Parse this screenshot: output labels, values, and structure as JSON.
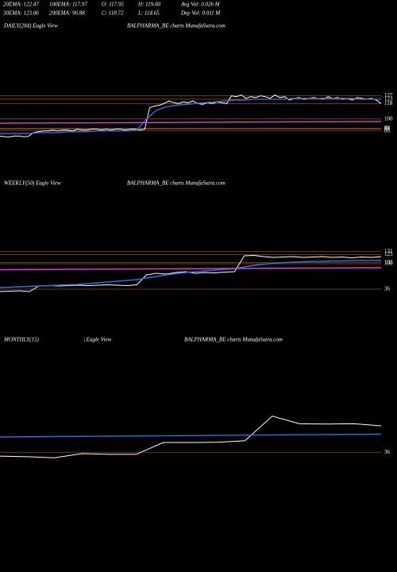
{
  "header": {
    "row1": [
      "20EMA: 122.47",
      "100EMA: 117.97",
      "O: 117.95",
      "H: 119.00",
      "Avg Vol: 0.026 M"
    ],
    "row2": [
      "30EMA: 123.06",
      "200EMA: 96.88",
      "C: 118.72",
      "L: 114.65",
      "Day Vol: 0.011 M"
    ]
  },
  "chart_data": [
    {
      "type": "line",
      "title_parts": [
        "DAILY(284) Eagle View",
        "BALPHARMA_BE charts MunafaSutra.com"
      ],
      "ylim": [
        70,
        135
      ],
      "yticks": [
        127,
        123,
        118,
        100,
        89,
        88,
        86
      ],
      "series": [
        {
          "color": "#ffffff",
          "values": [
            80,
            79,
            79,
            80,
            80,
            79,
            80,
            84,
            85,
            86,
            86,
            87,
            86,
            87,
            87,
            86,
            88,
            87,
            87,
            88,
            88,
            87,
            88,
            87,
            88,
            88,
            87,
            88,
            88,
            87,
            88,
            113,
            115,
            116,
            118,
            121,
            119,
            118,
            120,
            119,
            121,
            118,
            117,
            119,
            118,
            120,
            119,
            118,
            127,
            126,
            128,
            124,
            126,
            125,
            127,
            126,
            124,
            128,
            125,
            126,
            122,
            124,
            125,
            123,
            124,
            125,
            124,
            123,
            126,
            124,
            125,
            123,
            124,
            122,
            125,
            124,
            123,
            124,
            122,
            118
          ]
        },
        {
          "color": "#2f6fe0",
          "values": [
            83,
            83,
            83,
            83,
            84,
            84,
            84,
            85,
            85,
            85,
            86,
            86,
            86,
            86,
            87,
            100,
            110,
            114,
            116,
            117,
            118,
            119,
            120,
            121,
            122,
            122,
            123,
            123,
            123,
            123,
            124,
            124,
            124,
            124,
            124,
            124,
            124,
            123,
            123,
            123
          ]
        },
        {
          "color": "#e040e0",
          "values": [
            95,
            97
          ]
        }
      ]
    },
    {
      "type": "line",
      "title_parts": [
        "WEEKLY(50) Eagle  View",
        "BALPHARMA_BE charts MunafaSutra.com"
      ],
      "ylim": [
        20,
        140
      ],
      "yticks": [
        131,
        123,
        103,
        100,
        36
      ],
      "series": [
        {
          "color": "#ffffff",
          "values": [
            30,
            31,
            32,
            30,
            44,
            45,
            44,
            45,
            46,
            45,
            46,
            47,
            46,
            45,
            47,
            72,
            76,
            74,
            78,
            80,
            76,
            78,
            77,
            79,
            80,
            120,
            121,
            118,
            116,
            117,
            118,
            116,
            117,
            118,
            116,
            117,
            115,
            117,
            116,
            118
          ]
        },
        {
          "color": "#2f6fe0",
          "values": [
            40,
            41,
            42,
            43,
            44,
            45,
            46,
            47,
            48,
            50,
            52,
            54,
            56,
            58,
            60,
            64,
            68,
            72,
            75,
            78,
            80,
            82,
            84,
            86,
            88,
            92,
            96,
            99,
            101,
            103,
            104,
            105,
            106,
            106,
            107,
            107,
            108,
            108,
            108,
            108
          ]
        },
        {
          "color": "#e040e0",
          "values": [
            85,
            90
          ]
        }
      ]
    },
    {
      "type": "line",
      "title_parts": [
        "MONTHLY(15)",
        "| Eagle  View",
        "BALPHARMA_BE charts MunafaSutra.com"
      ],
      "ylim": [
        0,
        160
      ],
      "yticks": [
        36
      ],
      "series": [
        {
          "color": "#ffffff",
          "values": [
            25,
            23,
            20,
            32,
            30,
            30,
            64,
            64,
            65,
            69,
            140,
            118,
            117,
            118,
            112
          ]
        },
        {
          "color": "#2f6fe0",
          "values": [
            80,
            88
          ]
        }
      ]
    }
  ]
}
